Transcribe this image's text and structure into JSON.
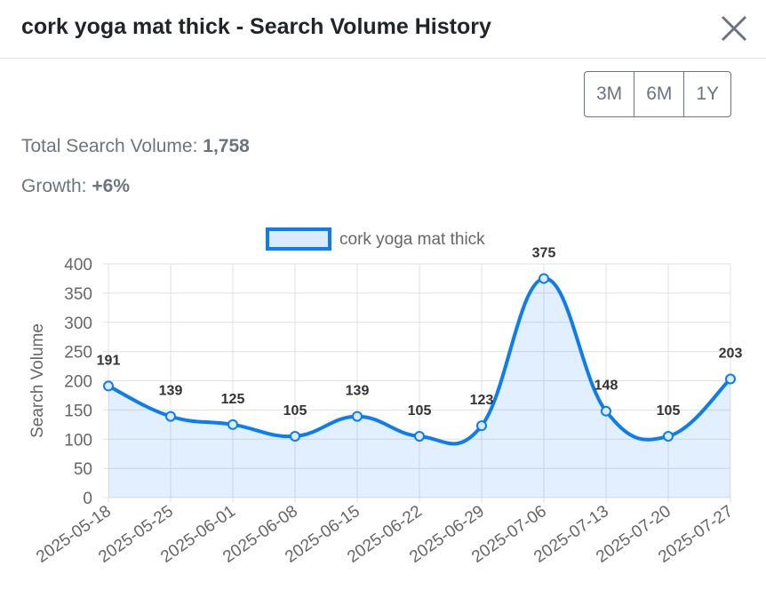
{
  "header": {
    "title": "cork yoga mat thick - Search Volume History"
  },
  "range_buttons": [
    "3M",
    "6M",
    "1Y"
  ],
  "stats": {
    "total_label": "Total Search Volume:",
    "total_value": "1,758",
    "growth_label": "Growth:",
    "growth_value": "+6%"
  },
  "chart_data": {
    "type": "line",
    "categories": [
      "2025-05-18",
      "2025-05-25",
      "2025-06-01",
      "2025-06-08",
      "2025-06-15",
      "2025-06-22",
      "2025-06-29",
      "2025-07-06",
      "2025-07-13",
      "2025-07-20",
      "2025-07-27"
    ],
    "series": [
      {
        "name": "cork yoga mat thick",
        "color": "#0a7cf5",
        "values": [
          191,
          139,
          125,
          105,
          139,
          105,
          123,
          375,
          148,
          105,
          203
        ]
      }
    ],
    "y_label": "Search Volume",
    "ylim": [
      0,
      400
    ],
    "yticks": [
      0,
      50,
      100,
      150,
      200,
      250,
      300,
      350,
      400
    ],
    "grid": true,
    "legend": "top"
  }
}
